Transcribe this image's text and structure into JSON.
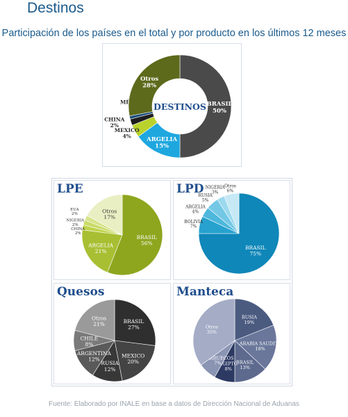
{
  "page": {
    "title": "Destinos",
    "subtitle": "Participación de los países en el total y por producto en los últimos 12 meses",
    "footer": "Fuente: Elaborado por INALE en base a datos de Dirección Nacional de Aduanas"
  },
  "colors": {
    "title": "#1b5b8c",
    "panel_title": "#1f4e8c"
  },
  "chart_data": [
    {
      "id": "destinos",
      "type": "pie",
      "title": "",
      "center_label": "DESTINOS",
      "slices": [
        {
          "label": "BRASIL",
          "value": 50,
          "display": "50%",
          "color": "#4a4a4a"
        },
        {
          "label": "ARGELIA",
          "value": 15,
          "display": "15%",
          "color": "#1ea7df"
        },
        {
          "label": "MEXICO",
          "value": 4,
          "display": "4%",
          "color": "#b9d22c"
        },
        {
          "label": "CHINA",
          "value": 2,
          "display": "2%",
          "color": "#1d1d1d"
        },
        {
          "label": "MÉXICO",
          "value": 1,
          "display": "1%",
          "color": "#1e4f7a"
        },
        {
          "label": "Otros",
          "value": 28,
          "display": "28%",
          "color": "#5d6a1c"
        }
      ]
    },
    {
      "id": "lpe",
      "type": "pie",
      "title": "LPE",
      "slices": [
        {
          "label": "BRASIL",
          "value": 56,
          "display": "56%",
          "color": "#8ea61e"
        },
        {
          "label": "ARGELIA",
          "value": 21,
          "display": "21%",
          "color": "#a9bf33"
        },
        {
          "label": "CHINA",
          "value": 2,
          "display": "2%",
          "color": "#bfd34a"
        },
        {
          "label": "NIGERIA",
          "value": 2,
          "display": "2%",
          "color": "#cadb6a"
        },
        {
          "label": "EUA",
          "value": 2,
          "display": "2%",
          "color": "#d6e48a"
        },
        {
          "label": "Otros",
          "value": 17,
          "display": "17%",
          "color": "#e9efc3"
        }
      ]
    },
    {
      "id": "lpd",
      "type": "pie",
      "title": "LPD",
      "slices": [
        {
          "label": "BRASIL",
          "value": 75,
          "display": "75%",
          "color": "#0f87b9"
        },
        {
          "label": "BOLIVIA",
          "value": 7,
          "display": "7%",
          "color": "#27a2cf"
        },
        {
          "label": "ARGELIA",
          "value": 4,
          "display": "4%",
          "color": "#4db7dc"
        },
        {
          "label": "RUSIA",
          "value": 5,
          "display": "5%",
          "color": "#74c8e6"
        },
        {
          "label": "NIGERIA",
          "value": 3,
          "display": "3%",
          "color": "#9cd9ee"
        },
        {
          "label": "Otros",
          "value": 6,
          "display": "6%",
          "color": "#c6e9f5"
        }
      ]
    },
    {
      "id": "quesos",
      "type": "pie",
      "title": "Quesos",
      "slices": [
        {
          "label": "BRASIL",
          "value": 27,
          "display": "27%",
          "color": "#2f2f2f"
        },
        {
          "label": "MEXICO",
          "value": 20,
          "display": "20%",
          "color": "#444444"
        },
        {
          "label": "RUSIA",
          "value": 12,
          "display": "12%",
          "color": "#383838"
        },
        {
          "label": "ARGENTINA",
          "value": 12,
          "display": "12%",
          "color": "#5a5a5a"
        },
        {
          "label": "CHILE",
          "value": 8,
          "display": "8%",
          "color": "#7a7a7a"
        },
        {
          "label": "Otros",
          "value": 21,
          "display": "21%",
          "color": "#9a9a9a"
        }
      ]
    },
    {
      "id": "manteca",
      "type": "pie",
      "title": "Manteca",
      "slices": [
        {
          "label": "RUSIA",
          "value": 19,
          "display": "19%",
          "color": "#4b5b80"
        },
        {
          "label": "ARABIA SAUDITA",
          "value": 18,
          "display": "18%",
          "color": "#6a779b"
        },
        {
          "label": "BRASIL",
          "value": 13,
          "display": "13%",
          "color": "#5d6a8e"
        },
        {
          "label": "EGIPTO",
          "value": 8,
          "display": "8%",
          "color": "#2c3a63"
        },
        {
          "label": "MARRUECOS",
          "value": 7,
          "display": "7%",
          "color": "#8a94b3"
        },
        {
          "label": "Otros",
          "value": 35,
          "display": "35%",
          "color": "#a4acc6"
        }
      ]
    }
  ]
}
